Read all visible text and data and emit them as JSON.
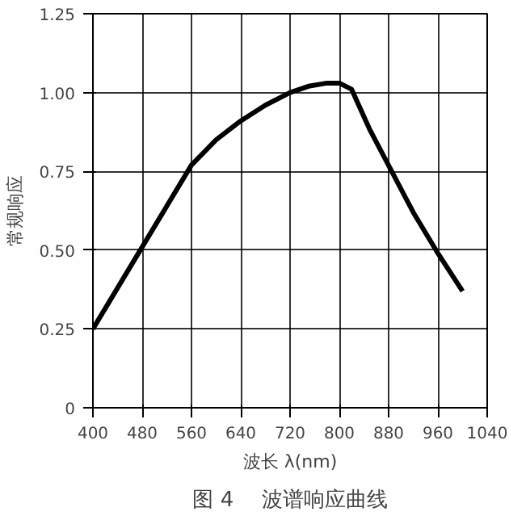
{
  "chart_data": {
    "type": "line",
    "title": "图 4　 波谱响应曲线",
    "xlabel": "波长 λ(nm)",
    "ylabel": "常规响应",
    "x": [
      400,
      480,
      520,
      560,
      600,
      640,
      680,
      720,
      750,
      780,
      800,
      820,
      850,
      885,
      920,
      960,
      1000
    ],
    "series": [
      {
        "color": "#000000",
        "values": [
          0.25,
          0.51,
          0.64,
          0.77,
          0.85,
          0.91,
          0.96,
          1.0,
          1.02,
          1.03,
          1.03,
          1.01,
          0.88,
          0.75,
          0.62,
          0.49,
          0.37
        ]
      }
    ],
    "xlim": [
      400,
      1040
    ],
    "xticks": [
      400,
      480,
      560,
      640,
      720,
      800,
      880,
      960,
      1040
    ],
    "ylim": [
      0,
      1.25
    ],
    "yticks": [
      0,
      0.25,
      {
        "value": 0.5,
        "label": "0.50"
      },
      0.75,
      {
        "value": 1,
        "label": "1.00"
      },
      1.25
    ],
    "grid": true,
    "marker": "none",
    "line_style": "solid"
  }
}
